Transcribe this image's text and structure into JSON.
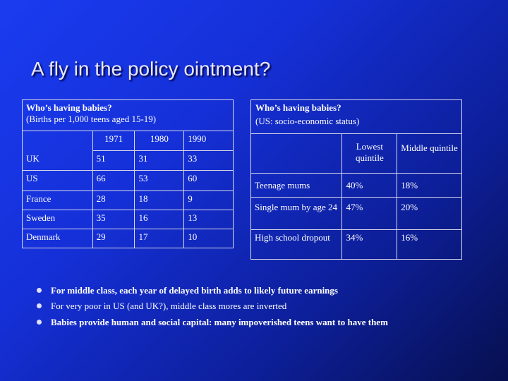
{
  "title": "A fly in the policy ointment?",
  "table_left": {
    "heading": "Who’s having babies?",
    "subheading": "(Births per 1,000 teens aged 15-19)",
    "columns": [
      "1971",
      "1980",
      "1990"
    ],
    "rows": [
      {
        "country": "UK",
        "values": [
          "51",
          "31",
          "33"
        ]
      },
      {
        "country": "US",
        "values": [
          "66",
          "53",
          "60"
        ]
      },
      {
        "country": "France",
        "values": [
          "28",
          "18",
          "9"
        ]
      },
      {
        "country": "Sweden",
        "values": [
          "35",
          "16",
          "13"
        ]
      },
      {
        "country": "Denmark",
        "values": [
          "29",
          "17",
          "10"
        ]
      }
    ]
  },
  "table_right": {
    "heading": "Who’s having babies?",
    "subheading": "(US: socio-economic status)",
    "columns": [
      "Lowest quintile",
      "Middle quintile"
    ],
    "rows": [
      {
        "label": "Teenage mums",
        "values": [
          "40%",
          "18%"
        ]
      },
      {
        "label": "Single mum by age 24",
        "values": [
          "47%",
          "20%"
        ]
      },
      {
        "label": "High school dropout",
        "values": [
          "34%",
          "16%"
        ]
      }
    ]
  },
  "bullets": [
    "For middle class, each year of delayed birth adds to likely future earnings",
    "For very poor in US (and UK?), middle class mores are inverted",
    "Babies provide human and social capital: many impoverished teens want to have them"
  ]
}
